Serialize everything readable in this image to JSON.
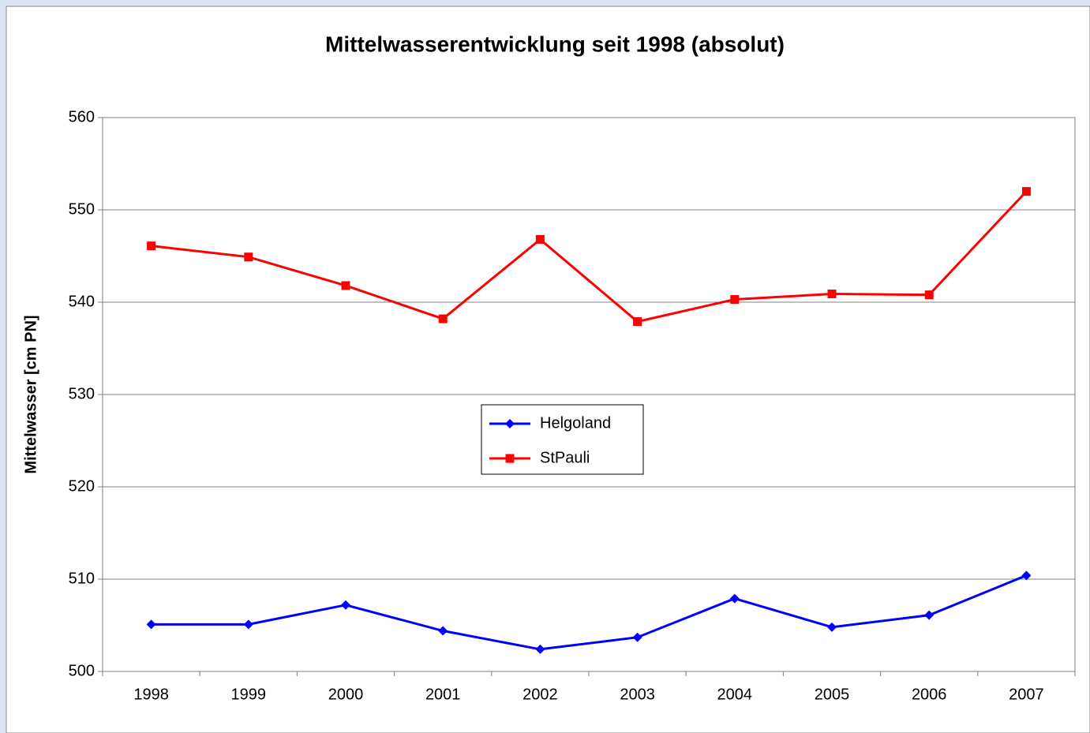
{
  "chart_data": {
    "type": "line",
    "title": "Mittelwasserentwicklung seit 1998 (absolut)",
    "y_label": "Mittelwasser [cm PN]",
    "categories": [
      "1998",
      "1999",
      "2000",
      "2001",
      "2002",
      "2003",
      "2004",
      "2005",
      "2006",
      "2007"
    ],
    "series": [
      {
        "name": "Helgoland",
        "color": "#0000ff",
        "marker": "diamond",
        "values": [
          505.1,
          505.1,
          507.2,
          504.4,
          502.4,
          503.7,
          507.9,
          504.8,
          506.1,
          510.4
        ]
      },
      {
        "name": "StPauli",
        "color": "#ff0000",
        "marker": "square",
        "values": [
          546.1,
          544.9,
          541.8,
          538.2,
          546.8,
          537.9,
          540.3,
          540.9,
          540.8,
          552.0
        ]
      }
    ],
    "ylim": [
      500,
      560
    ],
    "yticks": [
      500,
      510,
      520,
      530,
      540,
      550,
      560
    ],
    "grid": true
  }
}
